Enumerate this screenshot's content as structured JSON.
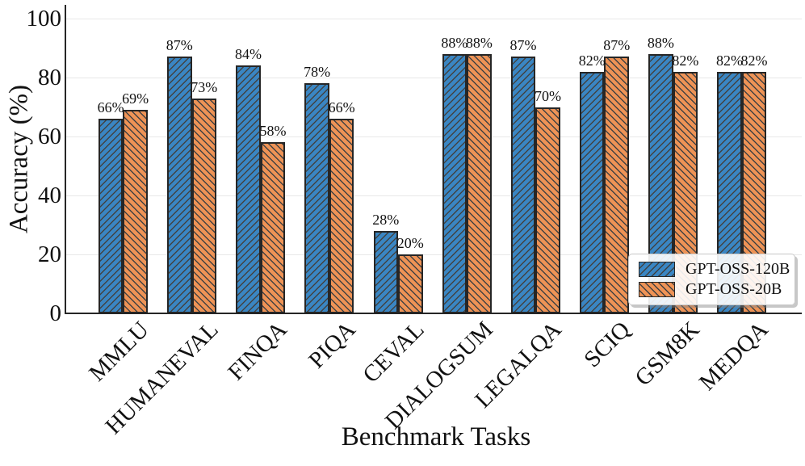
{
  "chart_data": {
    "type": "bar",
    "title": "",
    "xlabel": "Benchmark Tasks",
    "ylabel": "Accuracy (%)",
    "categories": [
      "MMLU",
      "HUMANEVAL",
      "FINQA",
      "PIQA",
      "CEVAL",
      "DIALOGSUM",
      "LEGALQA",
      "SCIQ",
      "GSM8K",
      "MEDQA"
    ],
    "series": [
      {
        "name": "GPT-OSS-120B",
        "color": "#3a86c3",
        "hatch": "/",
        "values": [
          66,
          87,
          84,
          78,
          28,
          88,
          87,
          82,
          88,
          82
        ]
      },
      {
        "name": "GPT-OSS-20B",
        "color": "#ee9356",
        "hatch": "\\",
        "values": [
          69,
          73,
          58,
          66,
          20,
          88,
          70,
          87,
          82,
          82
        ]
      }
    ],
    "value_label_suffix": "%",
    "ylim": [
      0,
      100
    ],
    "yticks": [
      0,
      20,
      40,
      60,
      80,
      100
    ],
    "grid": "horizontal",
    "grid_color": "#e8e8e8",
    "edge_color": "#262626",
    "legend_position": "lower-right"
  }
}
